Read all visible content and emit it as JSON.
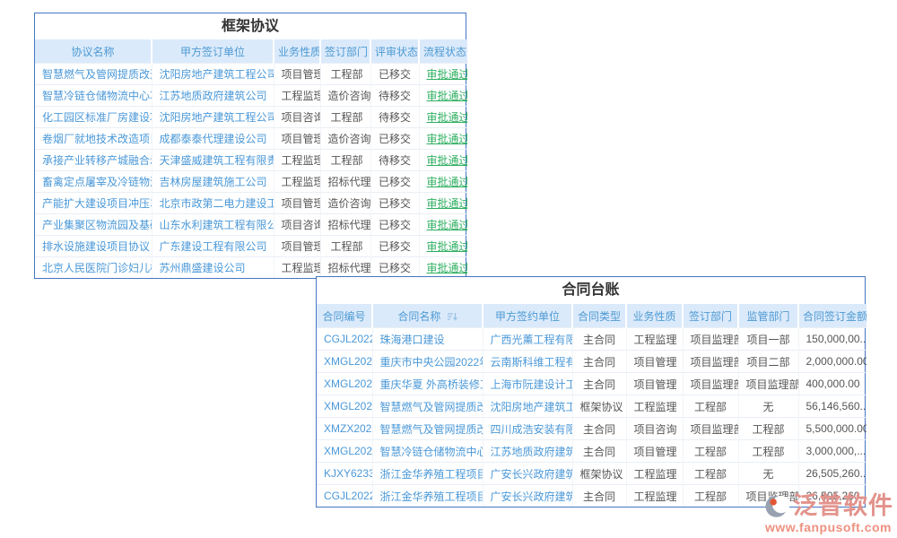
{
  "colors": {
    "panel_border": "#4576c2",
    "header_bg": "#dbeafb",
    "header_text": "#4e9ad2",
    "link_blue": "#4a98d8",
    "body_text": "#555555",
    "success_green": "#2eaf60",
    "watermark_salmon": "#e2938c",
    "watermark_url": "#ee9180",
    "logo_gray": "#97a1b0",
    "logo_dot_orange": "#e25636"
  },
  "icons": {
    "sort": "sort-descending-icon",
    "logo": "fanpu-logo-icon"
  },
  "agreements": {
    "title": "框架协议",
    "columns": [
      "协议名称",
      "甲方签订单位",
      "业务性质",
      "签订部门",
      "评审状态",
      "流程状态"
    ],
    "rows": [
      {
        "name": "智慧燃气及管网提质改造项目...",
        "unit": "沈阳房地产建筑工程公司",
        "biz": "项目管理",
        "dept": "工程部",
        "review": "已移交",
        "flow": "审批通过"
      },
      {
        "name": "智慧冷链仓储物流中心项目协议",
        "unit": "江苏地质政府建筑公司",
        "biz": "工程监理",
        "dept": "造价咨询部",
        "review": "待移交",
        "flow": "审批通过"
      },
      {
        "name": "化工园区标准厂房建设项目一...",
        "unit": "沈阳房地产建筑工程公司",
        "biz": "项目咨询",
        "dept": "工程部",
        "review": "待移交",
        "flow": "审批通过"
      },
      {
        "name": "卷烟厂就地技术改造项目协议",
        "unit": "成都泰泰代理建设公司",
        "biz": "项目管理",
        "dept": "造价咨询部",
        "review": "已移交",
        "flow": "审批通过"
      },
      {
        "name": "承接产业转移产城融合示范项...",
        "unit": "天津盛威建筑工程有限责任公司",
        "biz": "工程监理",
        "dept": "工程部",
        "review": "待移交",
        "flow": "审批通过"
      },
      {
        "name": "畜禽定点屠宰及冷链物流基地...",
        "unit": "吉林房屋建筑施工公司",
        "biz": "工程监理",
        "dept": "招标代理部",
        "review": "已移交",
        "flow": "审批通过"
      },
      {
        "name": "产能扩大建设项目冲压车间项...",
        "unit": "北京市政第二电力建设工程有...",
        "biz": "项目管理",
        "dept": "造价咨询部",
        "review": "已移交",
        "flow": "审批通过"
      },
      {
        "name": "产业集聚区物流园及基础设施...",
        "unit": "山东水利建筑工程有限公司",
        "biz": "项目咨询",
        "dept": "招标代理部",
        "review": "已移交",
        "flow": "审批通过"
      },
      {
        "name": "排水设施建设项目协议",
        "unit": "广东建设工程有限公司",
        "biz": "项目管理",
        "dept": "工程部",
        "review": "已移交",
        "flow": "审批通过"
      },
      {
        "name": "北京人民医院门诊妇儿楼工程...",
        "unit": "苏州鼎盛建设公司",
        "biz": "工程监理",
        "dept": "招标代理部",
        "review": "已移交",
        "flow": "审批通过"
      }
    ]
  },
  "contracts": {
    "title": "合同台账",
    "columns": [
      "合同编号",
      "合同名称",
      "甲方签约单位",
      "合同类型",
      "业务性质",
      "签订部门",
      "监管部门",
      "合同签订金额"
    ],
    "sorted_column": "合同名称",
    "rows": [
      {
        "no": "CGJL202204...",
        "name": "珠海港口建设",
        "unit": "广西光薰工程有限...",
        "type": "主合同",
        "biz": "工程监理",
        "dept": "项目监理部",
        "super": "项目一部",
        "amount": "150,000,00..."
      },
      {
        "no": "XMGL20220...",
        "name": "重庆市中央公园2022年...",
        "unit": "云南斯科维工程有...",
        "type": "主合同",
        "biz": "项目管理",
        "dept": "项目监理部",
        "super": "项目二部",
        "amount": "2,000,000.00"
      },
      {
        "no": "XMGL20220...",
        "name": "重庆华夏 外高桥装修工程",
        "unit": "上海市阮建设计工...",
        "type": "主合同",
        "biz": "项目管理",
        "dept": "项目监理部",
        "super": "项目监理部",
        "amount": "400,000.00"
      },
      {
        "no": "XMGL20220...",
        "name": "智慧燃气及管网提质改...",
        "unit": "沈阳房地产建筑工...",
        "type": "框架协议",
        "biz": "工程监理",
        "dept": "工程部",
        "super": "无",
        "amount": "56,146,560..."
      },
      {
        "no": "XMZX20220...",
        "name": "智慧燃气及管网提质改...",
        "unit": "四川成浩安装有限...",
        "type": "主合同",
        "biz": "项目咨询",
        "dept": "项目监理部",
        "super": "工程部",
        "amount": "5,500,000.00"
      },
      {
        "no": "XMGL20220...",
        "name": "智慧冷链仓储物流中心...",
        "unit": "江苏地质政府建筑...",
        "type": "主合同",
        "biz": "项目管理",
        "dept": "工程部",
        "super": "工程部",
        "amount": "3,000,000,..."
      },
      {
        "no": "KJXY6233326",
        "name": "浙江金华养殖工程项目...",
        "unit": "广安长兴政府建筑...",
        "type": "框架协议",
        "biz": "工程监理",
        "dept": "工程部",
        "super": "无",
        "amount": "26,505,260..."
      },
      {
        "no": "CGJL202205...",
        "name": "浙江金华养殖工程项目",
        "unit": "广安长兴政府建筑...",
        "type": "主合同",
        "biz": "工程监理",
        "dept": "工程部",
        "super": "项目监理部",
        "amount": "26,505,260..."
      }
    ]
  },
  "watermark": {
    "brand": "泛普软件",
    "url": "www.fanpusoft.com"
  }
}
